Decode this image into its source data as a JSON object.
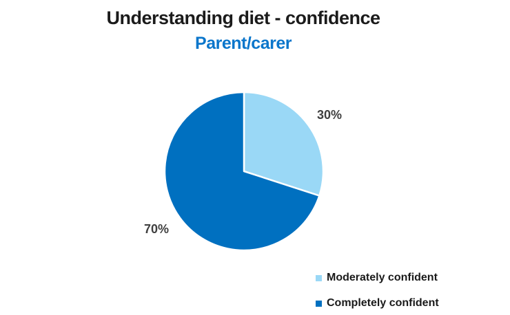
{
  "title": {
    "text": "Understanding diet - confidence",
    "color": "#1b1b1b"
  },
  "subtitle": {
    "text": "Parent/carer",
    "color": "#0b76cb"
  },
  "chart_data": {
    "type": "pie",
    "title": "Understanding diet - confidence",
    "subtitle": "Parent/carer",
    "start_angle_deg": -90,
    "direction": "clockwise",
    "separator_color": "#ffffff",
    "slices": [
      {
        "label": "Moderately confident",
        "value": 30,
        "display": "30%",
        "color": "#9ad8f6"
      },
      {
        "label": "Completely confident",
        "value": 70,
        "display": "70%",
        "color": "#0070c0"
      }
    ],
    "legend_position": "bottom-right",
    "data_labels": "outside-percent"
  }
}
